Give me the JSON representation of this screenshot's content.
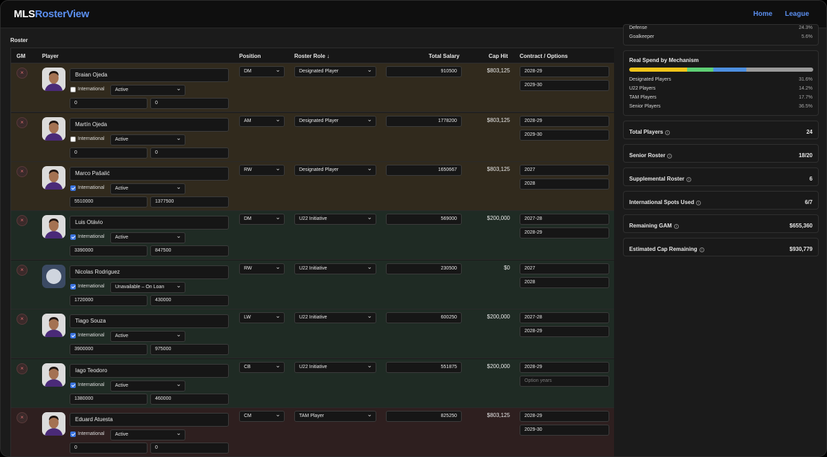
{
  "app": {
    "logo_prefix": "MLS",
    "logo_suffix": "RosterView"
  },
  "nav": {
    "home": "Home",
    "league": "League"
  },
  "section_title": "Roster",
  "columns": {
    "gm": "GM",
    "player": "Player",
    "position": "Position",
    "roster_role": "Roster Role ↓",
    "total_salary": "Total Salary",
    "cap_hit": "Cap Hit",
    "contract": "Contract / Options"
  },
  "labels": {
    "international": "International",
    "remove": "×"
  },
  "colors": {
    "dp_row": "#312a1d",
    "u22_row": "#1f2b24",
    "tam_row": "#2e1f1f",
    "accent": "#5b8ff0"
  },
  "players": [
    {
      "name": "Braian Ojeda",
      "international": false,
      "status": "Active",
      "f1": "0",
      "f2": "0",
      "position": "DM",
      "role": "Designated Player",
      "salary": "910500",
      "cap_hit": "$803,125",
      "c1": "2028-29",
      "c2": "2029-30",
      "c2_placeholder": false,
      "row_color": "#312a1d"
    },
    {
      "name": "Martín Ojeda",
      "international": false,
      "status": "Active",
      "f1": "0",
      "f2": "0",
      "position": "AM",
      "role": "Designated Player",
      "salary": "1778200",
      "cap_hit": "$803,125",
      "c1": "2028-29",
      "c2": "2029-30",
      "c2_placeholder": false,
      "row_color": "#312a1d"
    },
    {
      "name": "Marco Pašalić",
      "international": true,
      "status": "Active",
      "f1": "5510000",
      "f2": "1377500",
      "position": "RW",
      "role": "Designated Player",
      "salary": "1650667",
      "cap_hit": "$803,125",
      "c1": "2027",
      "c2": "2028",
      "c2_placeholder": false,
      "row_color": "#312a1d"
    },
    {
      "name": "Luis Otávio",
      "international": true,
      "status": "Active",
      "f1": "3390000",
      "f2": "847500",
      "position": "DM",
      "role": "U22 Initiative",
      "salary": "569000",
      "cap_hit": "$200,000",
      "c1": "2027-28",
      "c2": "2028-29",
      "c2_placeholder": false,
      "row_color": "#1f2b24"
    },
    {
      "name": "Nicolas Rodriguez",
      "international": true,
      "status": "Unavailable – On Loan",
      "f1": "1720000",
      "f2": "430000",
      "position": "RW",
      "role": "U22 Initiative",
      "salary": "230500",
      "cap_hit": "$0",
      "c1": "2027",
      "c2": "2028",
      "c2_placeholder": false,
      "row_color": "#1f2b24",
      "placeholder_avatar": true
    },
    {
      "name": "Tiago Souza",
      "international": true,
      "status": "Active",
      "f1": "3900000",
      "f2": "975000",
      "position": "LW",
      "role": "U22 Initiative",
      "salary": "600250",
      "cap_hit": "$200,000",
      "c1": "2027-28",
      "c2": "2028-29",
      "c2_placeholder": false,
      "row_color": "#1f2b24"
    },
    {
      "name": "Iago Teodoro",
      "international": true,
      "status": "Active",
      "f1": "1380000",
      "f2": "460000",
      "position": "CB",
      "role": "U22 Initiative",
      "salary": "551875",
      "cap_hit": "$200,000",
      "c1": "2028-29",
      "c2": "Option years",
      "c2_placeholder": true,
      "row_color": "#1f2b24"
    },
    {
      "name": "Eduard Atuesta",
      "international": true,
      "status": "Active",
      "f1": "0",
      "f2": "0",
      "position": "CM",
      "role": "TAM Player",
      "salary": "825250",
      "cap_hit": "$803,125",
      "c1": "2028-29",
      "c2": "2029-30",
      "c2_placeholder": false,
      "row_color": "#2e1f1f"
    }
  ],
  "sidebar": {
    "position_lines": [
      {
        "label": "Defense",
        "value": "24.3%"
      },
      {
        "label": "Goalkeeper",
        "value": "5.6%"
      }
    ],
    "spend": {
      "title": "Real Spend by Mechanism",
      "segments": [
        {
          "label": "Designated Players",
          "value": "31.6%",
          "pct": 31.6,
          "color": "#f0c419"
        },
        {
          "label": "U22 Players",
          "value": "14.2%",
          "pct": 14.2,
          "color": "#5fcf75"
        },
        {
          "label": "TAM Players",
          "value": "17.7%",
          "pct": 17.7,
          "color": "#4d8fe0"
        },
        {
          "label": "Senior Players",
          "value": "36.5%",
          "pct": 36.5,
          "color": "#9a9a9a"
        }
      ]
    },
    "stats": [
      {
        "label": "Total Players",
        "value": "24"
      },
      {
        "label": "Senior Roster",
        "value": "18/20"
      },
      {
        "label": "Supplemental Roster",
        "value": "6"
      },
      {
        "label": "International Spots Used",
        "value": "6/7"
      },
      {
        "label": "Remaining GAM",
        "value": "$655,360"
      },
      {
        "label": "Estimated Cap Remaining",
        "value": "$930,779"
      }
    ]
  }
}
